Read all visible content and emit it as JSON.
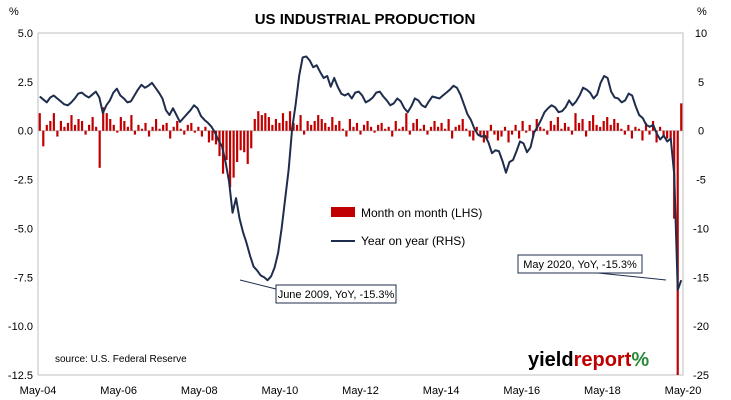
{
  "chart_data": {
    "type": "bar+line",
    "title": "US INDUSTRIAL PRODUCTION",
    "left_axis": {
      "unit_label": "%",
      "ylim": [
        -12.5,
        5.0
      ],
      "ticks": [
        "5.0",
        "2.5",
        "0.0",
        "-2.5",
        "-5.0",
        "-7.5",
        "-10.0",
        "-12.5"
      ]
    },
    "right_axis": {
      "unit_label": "%",
      "ylim": [
        -25,
        10
      ],
      "ticks": [
        "10",
        "5",
        "0",
        "-5",
        "-10",
        "-15",
        "-20",
        "-25"
      ]
    },
    "x_ticks": [
      "May-04",
      "May-06",
      "May-08",
      "May-10",
      "May-12",
      "May-14",
      "May-16",
      "May-18",
      "May-20"
    ],
    "series": [
      {
        "name": "Month on month (LHS)",
        "kind": "bar",
        "color": "#c00000",
        "axis": "left",
        "values": [
          0.9,
          -0.8,
          0.3,
          0.5,
          0.9,
          -0.3,
          0.5,
          0.2,
          0.4,
          0.8,
          0.3,
          0.6,
          0.5,
          -0.2,
          0.3,
          0.7,
          0.2,
          -1.9,
          1.2,
          0.9,
          0.6,
          0.3,
          -0.1,
          0.7,
          0.5,
          0.2,
          0.8,
          -0.2,
          0.3,
          0.1,
          0.4,
          -0.3,
          0.2,
          0.6,
          0.1,
          0.3,
          0.4,
          -0.4,
          0.2,
          0.5,
          0.1,
          -0.2,
          0.3,
          0.4,
          -0.1,
          0.2,
          -0.3,
          0.2,
          -0.6,
          -0.5,
          -0.7,
          -1.3,
          -2.2,
          -1.5,
          -2.9,
          -2.4,
          -1.6,
          -1.0,
          -1.1,
          -1.7,
          -0.9,
          0.6,
          1.0,
          0.8,
          0.9,
          0.7,
          0.3,
          0.6,
          0.4,
          0.9,
          0.5,
          1.0,
          0.4,
          0.3,
          0.8,
          -0.2,
          0.5,
          0.3,
          0.5,
          0.8,
          0.6,
          0.4,
          0.2,
          0.7,
          0.3,
          0.5,
          0.1,
          -0.3,
          0.6,
          0.2,
          0.4,
          -0.2,
          0.3,
          0.5,
          0.2,
          -0.1,
          0.3,
          0.4,
          0.1,
          0.2,
          -0.3,
          0.5,
          0.1,
          0.2,
          0.9,
          -0.2,
          0.4,
          0.6,
          0.1,
          0.3,
          -0.2,
          0.2,
          0.5,
          0.2,
          0.4,
          0.1,
          0.6,
          -0.4,
          0.2,
          0.3,
          0.6,
          0.1,
          -0.3,
          -0.5,
          0.2,
          -0.3,
          -0.6,
          -0.4,
          0.3,
          -0.2,
          -0.5,
          -0.3,
          0.2,
          -0.6,
          -0.2,
          0.3,
          -0.4,
          0.5,
          -0.1,
          0.3,
          -0.3,
          0.6,
          0.2,
          0.1,
          -0.2,
          0.5,
          0.3,
          0.7,
          0.1,
          0.4,
          0.2,
          -0.2,
          0.9,
          0.4,
          0.6,
          -0.3,
          0.5,
          0.8,
          0.3,
          0.2,
          0.5,
          0.7,
          0.3,
          0.6,
          0.4,
          0.1,
          -0.2,
          0.3,
          -0.4,
          0.2,
          0.1,
          -0.5,
          0.4,
          -0.2,
          0.5,
          -0.6,
          0.2,
          -0.3,
          -0.4,
          -0.5,
          -4.5,
          -12.5,
          1.4
        ]
      },
      {
        "name": "Year on year (RHS)",
        "kind": "line",
        "color": "#1f2d4d",
        "axis": "right",
        "values": [
          3.5,
          3.2,
          2.9,
          3.4,
          3.6,
          3.3,
          3.0,
          2.7,
          2.6,
          2.9,
          3.3,
          3.8,
          3.9,
          3.6,
          3.4,
          3.7,
          4.0,
          3.4,
          1.8,
          2.6,
          3.1,
          3.9,
          4.3,
          3.6,
          3.3,
          2.9,
          3.0,
          3.6,
          4.2,
          4.7,
          4.4,
          4.6,
          4.9,
          4.4,
          3.9,
          3.3,
          2.1,
          1.6,
          2.3,
          1.6,
          0.9,
          1.3,
          1.7,
          2.1,
          2.6,
          2.3,
          1.5,
          1.1,
          0.8,
          0.4,
          -0.2,
          -1.0,
          -1.6,
          -3.2,
          -5.2,
          -8.4,
          -6.9,
          -9.0,
          -10.4,
          -11.5,
          -12.8,
          -13.9,
          -14.3,
          -14.8,
          -15.0,
          -15.3,
          -14.9,
          -14.0,
          -12.5,
          -10.0,
          -7.0,
          -4.0,
          0.2,
          2.7,
          5.6,
          7.5,
          7.6,
          7.2,
          6.5,
          6.7,
          6.0,
          5.4,
          5.6,
          4.5,
          5.4,
          4.5,
          3.8,
          3.6,
          3.8,
          3.3,
          3.9,
          4.0,
          3.6,
          2.9,
          3.1,
          3.4,
          3.9,
          4.0,
          3.5,
          3.1,
          2.6,
          2.8,
          3.3,
          3.0,
          2.3,
          1.9,
          2.5,
          3.3,
          3.1,
          2.6,
          2.4,
          3.0,
          3.5,
          3.4,
          3.3,
          3.6,
          3.9,
          4.2,
          4.6,
          4.4,
          3.7,
          2.7,
          1.7,
          1.1,
          0.2,
          -0.4,
          -0.6,
          -0.5,
          -1.2,
          -2.3,
          -2.0,
          -2.1,
          -3.1,
          -4.3,
          -3.2,
          -3.0,
          -2.1,
          -1.1,
          -1.3,
          -2.2,
          -1.7,
          -0.2,
          0.4,
          1.1,
          1.9,
          2.3,
          2.6,
          2.4,
          1.9,
          2.0,
          2.4,
          3.1,
          2.6,
          3.0,
          3.6,
          4.4,
          4.2,
          3.9,
          3.3,
          3.7,
          4.9,
          5.6,
          5.4,
          4.0,
          3.4,
          3.3,
          2.9,
          3.1,
          3.8,
          3.6,
          2.5,
          1.6,
          1.3,
          0.6,
          0.4,
          0.6,
          -0.3,
          -0.9,
          -0.5,
          -1.1,
          -0.8,
          -4.5,
          -16.3,
          -15.3
        ]
      }
    ],
    "annotations": [
      "June 2009, YoY, -15.3%",
      "May 2020, YoY, -15.3%"
    ],
    "source": "source: U.S. Federal Reserve",
    "brand": {
      "text_a": "yield",
      "text_b": "report",
      "pct": "%"
    },
    "legend_position": "center"
  }
}
